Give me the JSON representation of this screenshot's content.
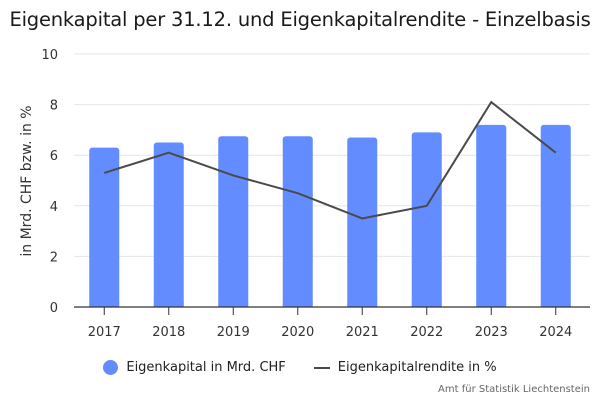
{
  "chart_data": {
    "type": "bar",
    "title": "Eigenkapital per 31.12. und Eigenkapitalrendite - Einzelbasis",
    "xlabel": "",
    "ylabel": "in Mrd. CHF bzw. in %",
    "categories": [
      "2017",
      "2018",
      "2019",
      "2020",
      "2021",
      "2022",
      "2023",
      "2024"
    ],
    "ylim": [
      0,
      10
    ],
    "yticks": [
      "0",
      "2",
      "4",
      "6",
      "8",
      "10"
    ],
    "grid": true,
    "legend_position": "bottom-center",
    "series": [
      {
        "name": "Eigenkapital in Mrd. CHF",
        "type": "bar",
        "color": "#628cff",
        "values": [
          6.3,
          6.5,
          6.75,
          6.75,
          6.7,
          6.9,
          7.2,
          7.2
        ]
      },
      {
        "name": "Eigenkapitalrendite in %",
        "type": "line",
        "color": "#4a4a4a",
        "values": [
          5.3,
          6.1,
          5.2,
          4.5,
          3.5,
          4.0,
          8.1,
          6.1
        ]
      }
    ]
  },
  "source": "Amt für Statistik Liechtenstein"
}
